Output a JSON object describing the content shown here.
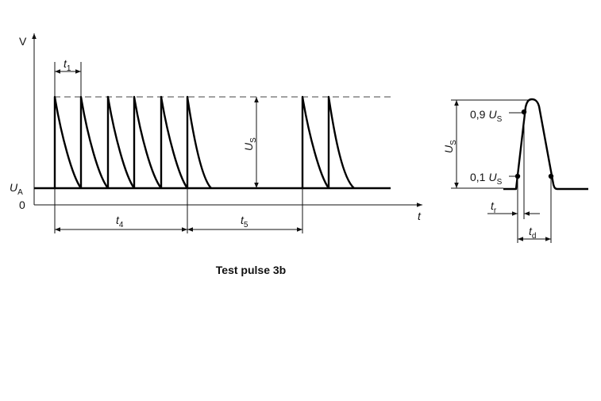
{
  "left": {
    "y_axis_label": "V",
    "x_axis_label": "t",
    "origin_label": "0",
    "baseline_label": {
      "main": "U",
      "sub": "A"
    },
    "amplitude_label": {
      "main": "U",
      "sub": "S"
    },
    "t1_label": {
      "main": "t",
      "sub": "1"
    },
    "t4_label": {
      "main": "t",
      "sub": "4"
    },
    "t5_label": {
      "main": "t",
      "sub": "5"
    }
  },
  "right": {
    "amplitude_label": {
      "main": "U",
      "sub": "S"
    },
    "high_point_label": {
      "prefix": "0,9",
      "main": "U",
      "sub": "S"
    },
    "low_point_label": {
      "prefix": "0,1",
      "main": "U",
      "sub": "S"
    },
    "rise_time_label": {
      "main": "t",
      "sub": "r"
    },
    "duration_label": {
      "main": "t",
      "sub": "d"
    }
  },
  "caption": "Test pulse 3b"
}
